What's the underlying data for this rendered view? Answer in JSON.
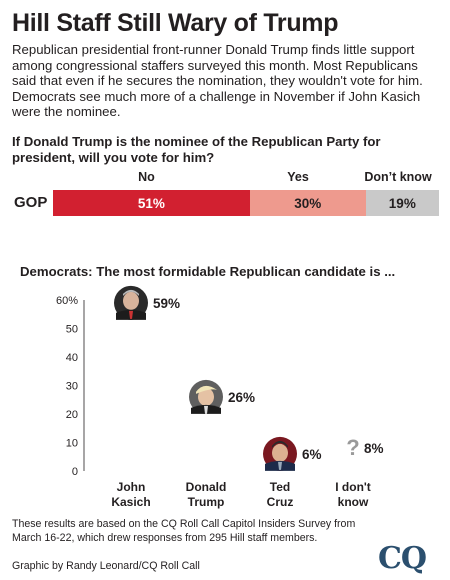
{
  "header": {
    "title": "Hill Staff Still Wary of Trump",
    "intro": "Republican presidential front-runner Donald Trump finds little support among congressional staffers surveyed this month. Most Republicans said that even if he secures the nomination, they wouldn't vote for him. Democrats see much more of a challenge in November if John Kasich were the nominee."
  },
  "gop_question": "If Donald Trump is the nominee of the Republican Party for president, will you vote for him?",
  "dem_question": "Democrats: The most formidable Republican candidate is ...",
  "footnote": "These results are based on the CQ Roll Call Capitol Insiders Survey from March 16-22, which drew responses from 295 Hill staff members.",
  "credit": "Graphic by Randy Leonard/CQ Roll Call",
  "logo": "CQ",
  "colors": {
    "no": "#d22030",
    "yes": "#ee9a8e",
    "dont_know": "#c9c9c9",
    "text": "#231f20",
    "logo": "#2b4f6e"
  },
  "chart_data": [
    {
      "type": "bar",
      "orientation": "horizontal-stacked",
      "title": "If Donald Trump is the nominee of the Republican Party for president, will you vote for him?",
      "categories": [
        "GOP"
      ],
      "series": [
        {
          "name": "No",
          "values": [
            51
          ],
          "label": "51%"
        },
        {
          "name": "Yes",
          "values": [
            30
          ],
          "label": "30%"
        },
        {
          "name": "Don’t know",
          "values": [
            19
          ],
          "label": "19%"
        }
      ]
    },
    {
      "type": "scatter",
      "title": "Democrats: The most formidable Republican candidate is ...",
      "categories": [
        "John Kasich",
        "Donald Trump",
        "Ted Cruz",
        "I don't know"
      ],
      "category_lines": [
        [
          "John",
          "Kasich"
        ],
        [
          "Donald",
          "Trump"
        ],
        [
          "Ted",
          "Cruz"
        ],
        [
          "I don't",
          "know"
        ]
      ],
      "values": [
        59,
        26,
        6,
        8
      ],
      "value_labels": [
        "59%",
        "26%",
        "6%",
        "8%"
      ],
      "markers": [
        "kasich-photo",
        "trump-photo",
        "cruz-photo",
        "question-mark-icon"
      ],
      "ylim": [
        0,
        60
      ],
      "yticks": [
        0,
        10,
        20,
        30,
        40,
        50,
        60
      ],
      "ytick_labels": [
        "0",
        "10",
        "20",
        "30",
        "40",
        "50",
        "60%"
      ],
      "grid": false
    }
  ]
}
